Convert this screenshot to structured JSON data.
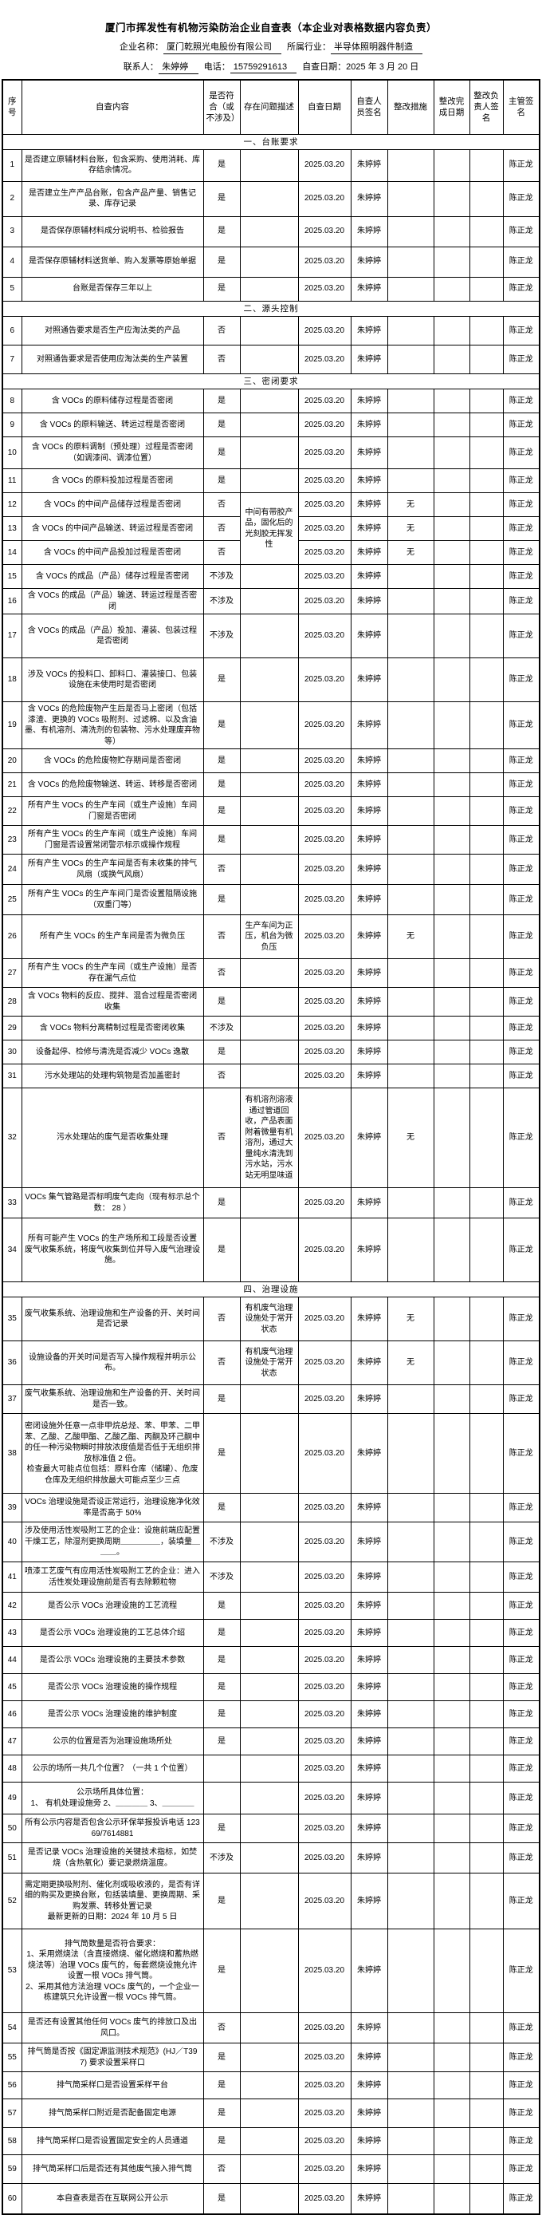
{
  "page": {
    "title": "厦门市挥发性有机物污染防治企业自查表（本企业对表格数据内容负责）",
    "info": {
      "company_label": "企业名称：",
      "company": "厦门乾照光电股份有限公司",
      "industry_label": "所属行业：",
      "industry": "半导体照明器件制造",
      "contact_label": "联系人：",
      "contact": "朱婷婷",
      "phone_label": "电话：",
      "phone": "15759291613",
      "date_label": "自查日期：",
      "date": "2025 年 3 月 20 日"
    }
  },
  "table": {
    "headers": [
      "序号",
      "自查内容",
      "是否符合（或不涉及）",
      "存在问题描述",
      "自查日期",
      "自查人员签名",
      "整改措施",
      "整改完成日期",
      "整改负责人签名",
      "主管签名"
    ],
    "defaults": {
      "date": "2025.03.20",
      "inspector": "朱婷婷",
      "supervisor": "陈正龙"
    },
    "rows": [
      {
        "section_before": "一、台账要求",
        "no": "1",
        "content": "是否建立原辅材料台账，包含采购、使用消耗、库存结余情况。",
        "comply": "是",
        "h": 40
      },
      {
        "no": "2",
        "content": "是否建立生产产品台账，包含产品产量、销售记录、库存记录",
        "comply": "是",
        "h": 44
      },
      {
        "no": "3",
        "content": "是否保存原辅材料成分说明书、检验报告",
        "comply": "是",
        "h": 38
      },
      {
        "no": "4",
        "content": "是否保存原辅材料送货单、购入发票等原始单据",
        "comply": "是",
        "h": 38
      },
      {
        "no": "5",
        "content": "台账是否保存三年以上",
        "comply": "是",
        "h": 30
      },
      {
        "section_before": "二、源头控制",
        "no": "6",
        "content": "对照通告要求是否生产应淘汰类的产品",
        "comply": "否",
        "h": 36
      },
      {
        "no": "7",
        "content": "对照通告要求是否使用应淘汰类的生产装置",
        "comply": "否",
        "h": 36
      },
      {
        "section_before": "三、密闭要求",
        "no": "8",
        "content": "含 VOCs 的原料储存过程是否密闭",
        "comply": "是",
        "h": 30
      },
      {
        "no": "9",
        "content": "含 VOCs 的原料输送、转运过程是否密闭",
        "comply": "是",
        "h": 30
      },
      {
        "no": "10",
        "content": "含 VOCs 的原料调制（预处理）过程是否密闭（如调漆间、调漆位置）",
        "comply": "是",
        "h": 40
      },
      {
        "no": "11",
        "content": "含 VOCs 的原料投加过程是否密闭",
        "comply": "是",
        "h": 30
      },
      {
        "no": "12",
        "content": "含 VOCs 的中间产品储存过程是否密闭",
        "comply": "否",
        "problem": "中间有带胶产品，固化后的光刻胶无挥发性",
        "problem_rowspan": 3,
        "measure": "无",
        "h": 30
      },
      {
        "no": "13",
        "content": "含 VOCs 的中间产品输送、转运过程是否密闭",
        "comply": "否",
        "problem_skip": true,
        "measure": "无",
        "h": 30
      },
      {
        "no": "14",
        "content": "含 VOCs 的中间产品投加过程是否密闭",
        "comply": "否",
        "problem_skip": true,
        "measure": "无",
        "h": 30
      },
      {
        "no": "15",
        "content": "含 VOCs 的成品（产品）储存过程是否密闭",
        "comply": "不涉及",
        "h": 30
      },
      {
        "no": "16",
        "content": "含 VOCs 的成品（产品）输送、转运过程是否密闭",
        "comply": "不涉及",
        "h": 30
      },
      {
        "no": "17",
        "content": "含 VOCs 的成品（产品）投加、灌装、包装过程是否密闭",
        "comply": "不涉及",
        "h": 55
      },
      {
        "no": "18",
        "content": "涉及 VOCs 的投料口、卸料口、灌装接口、包装设施在未使用时是否密闭",
        "comply": "是",
        "h": 55
      },
      {
        "no": "19",
        "content": "含 VOCs 的危险废物产生后是否马上密闭（包括漆渣、更换的 VOCs 吸附剂、过滤棉、以及含油墨、有机溶剂、清洗剂的包装物、污水处理废弃物等）",
        "comply": "是",
        "h": 50
      },
      {
        "no": "20",
        "content": "含 VOCs 的危险废物贮存期间是否密闭",
        "comply": "是",
        "h": 30
      },
      {
        "no": "21",
        "content": "含 VOCs 的危险废物输送、转运、转移是否密闭",
        "comply": "是",
        "h": 30
      },
      {
        "no": "22",
        "content": "所有产生 VOCs 的生产车间（或生产设施）车间门窗是否密闭",
        "comply": "是",
        "h": 36
      },
      {
        "no": "23",
        "content": "所有产生 VOCs 的生产车间（或生产设施）车间门窗是否设置常闭警示标示或操作规程",
        "comply": "是",
        "h": 36
      },
      {
        "no": "24",
        "content": "所有产生 VOCs 的生产车间是否有未收集的排气风扇（或换气风扇）",
        "comply": "否",
        "h": 38
      },
      {
        "no": "25",
        "content": "所有产生 VOCs 的生产车间门是否设置阻隔设施（双重门等）",
        "comply": "是",
        "h": 38
      },
      {
        "no": "26",
        "content": "所有产生 VOCs 的生产车间是否为微负压",
        "comply": "否",
        "problem": "生产车间为正压，机台为微负压",
        "measure": "无",
        "h": 55
      },
      {
        "no": "27",
        "content": "所有产生 VOCs 的生产车间（或生产设施）是否存在漏气点位",
        "comply": "否",
        "h": 36
      },
      {
        "no": "28",
        "content": "含 VOCs 物料的反应、搅拌、混合过程是否密闭收集",
        "comply": "是",
        "h": 36
      },
      {
        "no": "29",
        "content": "含 VOCs 物料分离精制过程是否密闭收集",
        "comply": "不涉及",
        "h": 30
      },
      {
        "no": "30",
        "content": "设备起停、检修与清洗是否减少 VOCs 逸散",
        "comply": "是",
        "h": 30
      },
      {
        "no": "31",
        "content": "污水处理站的处理构筑物是否加盖密封",
        "comply": "否",
        "h": 30
      },
      {
        "no": "32",
        "content": "污水处理站的废气是否收集处理",
        "comply": "否",
        "problem": "有机溶剂溶液通过管道回收，产品表面附着微量有机溶剂，通过大量纯水清洗到污水站，污水站无明显味道",
        "measure": "无",
        "h": 125
      },
      {
        "no": "33",
        "content": "VOCs 集气管路是否标明废气走向（现有标示总个数： 28 ）",
        "comply": "是",
        "h": 38
      },
      {
        "no": "34",
        "content": "所有可能产生 VOCs 的生产场所和工段是否设置废气收集系统，将废气收集到位并导入废气治理设施。",
        "comply": "是",
        "h": 80
      },
      {
        "section_before": "四、治理设施",
        "no": "35",
        "content": "废气收集系统、治理设施和生产设备的开、关时间是否记录",
        "comply": "否",
        "problem": "有机废气治理设施处于常开状态",
        "measure": "无",
        "h": 55
      },
      {
        "no": "36",
        "content": "设施设备的开关时间是否写入操作规程并明示公布。",
        "comply": "否",
        "problem": "有机废气治理设施处于常开状态",
        "measure": "无",
        "h": 55
      },
      {
        "no": "37",
        "content": "废气收集系统、治理设施和生产设备的开、关时间是否一致。",
        "comply": "是",
        "h": 36
      },
      {
        "no": "38",
        "content": "密闭设施外任意一点非甲烷总烃、苯、甲苯、二甲苯、乙酸、乙酸甲酯、乙酸乙酯、丙酮及环己酮中的任一种污染物瞬时排放浓度值是否低于无组织排放标准值 2 倍。\n检查最大可能点位包括：原料仓库（储罐）、危废仓库及无组织排放最大可能点至少三点",
        "comply": "是",
        "h": 100
      },
      {
        "no": "39",
        "content": "VOCs 治理设施是否设正常运行，治理设施净化效率是否高于 50%",
        "comply": "是",
        "h": 36
      },
      {
        "no": "40",
        "content": "涉及使用活性炭吸附工艺的企业：设施前端应配置干燥工艺，除湿剂更换周期＿＿＿＿＿，装填量＿＿＿。",
        "comply": "不涉及",
        "h": 50
      },
      {
        "no": "41",
        "content": "喷漆工艺废气有应用活性炭吸附工艺的企业：进入活性炭处理设施前是否有去除颗粒物",
        "comply": "不涉及",
        "h": 38
      },
      {
        "no": "42",
        "content": "是否公示 VOCs 治理设施的工艺流程",
        "comply": "是",
        "h": 34
      },
      {
        "no": "43",
        "content": "是否公示 VOCs 治理设施的工艺总体介绍",
        "comply": "是",
        "h": 34
      },
      {
        "no": "44",
        "content": "是否公示 VOCs 治理设施的主要技术参数",
        "comply": "是",
        "h": 34
      },
      {
        "no": "45",
        "content": "是否公示 VOCs 治理设施的操作规程",
        "comply": "是",
        "h": 34
      },
      {
        "no": "46",
        "content": "是否公示 VOCs 治理设施的维护制度",
        "comply": "是",
        "h": 34
      },
      {
        "no": "47",
        "content": "公示的位置是否为治理设施场所处",
        "comply": "是",
        "h": 34
      },
      {
        "no": "48",
        "content": "公示的场所一共几个位置？（一共 1 个位置）",
        "comply": "",
        "h": 34
      },
      {
        "no": "49",
        "content": "公示场所具体位置：\n1、 有机处理设施旁   2、＿＿＿＿   3、＿＿＿＿",
        "comply": "",
        "h": 40
      },
      {
        "no": "50",
        "content": "所有公示内容是否包含公示环保举报投诉电话 12369/7614881",
        "comply": "是",
        "h": 36
      },
      {
        "no": "51",
        "content": "是否记录 VOCs 治理设施的关键技术指标，如焚烧（含热氧化）要记录燃烧温度。",
        "comply": "不涉及",
        "h": 38
      },
      {
        "no": "52",
        "content": "需定期更换吸附剂、催化剂或吸收液的，是否有详细的购买及更换台账，包括装填量、更换周期、采购发票、转移处置记录\n最新更新的日期：2024 年 10 月 5 日",
        "comply": "是",
        "h": 70
      },
      {
        "no": "53",
        "content": "排气筒数量是否符合要求：\n1、采用燃烧法（含直接燃烧、催化燃烧和蓄热燃烧法等）治理 VOCs 废气的，每套燃烧设施允许设置一根 VOCs 排气筒。\n2、采用其他方法治理 VOCs 废气的，一个企业一栋建筑只允许设置一根 VOCs 排气筒。",
        "comply": "是",
        "h": 105
      },
      {
        "no": "54",
        "content": "是否还有设置其他任何 VOCs 废气的排放口及出风口。",
        "comply": "否",
        "h": 38
      },
      {
        "no": "55",
        "content": "排气筒是否按《固定源监测技术规范》(HJ／T397) 要求设置采样口",
        "comply": "是",
        "h": 36
      },
      {
        "no": "56",
        "content": "排气筒采样口是否设置采样平台",
        "comply": "是",
        "h": 34
      },
      {
        "no": "57",
        "content": "排气筒采样口附近是否配备固定电源",
        "comply": "是",
        "h": 36
      },
      {
        "no": "58",
        "content": "排气筒采样口是否设置固定安全的人员通道",
        "comply": "是",
        "h": 34
      },
      {
        "no": "59",
        "content": "排气筒采样口后是否还有其他废气接入排气筒",
        "comply": "否",
        "h": 36
      },
      {
        "no": "60",
        "content": "本自查表是否在互联网公开公示",
        "comply": "是",
        "h": 38
      }
    ]
  }
}
